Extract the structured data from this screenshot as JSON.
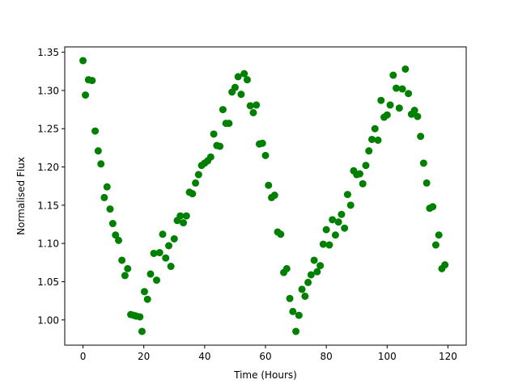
{
  "chart_data": {
    "type": "scatter",
    "title": "",
    "xlabel": "Time (Hours)",
    "ylabel": "Normalised Flux",
    "xlim": [
      -6,
      126
    ],
    "ylim": [
      0.967,
      1.357
    ],
    "xticks": [
      0,
      20,
      40,
      60,
      80,
      100,
      120
    ],
    "yticks": [
      1.0,
      1.05,
      1.1,
      1.15,
      1.2,
      1.25,
      1.3,
      1.35
    ],
    "ytick_labels": [
      "1.00",
      "1.05",
      "1.10",
      "1.15",
      "1.20",
      "1.25",
      "1.30",
      "1.35"
    ],
    "grid": false,
    "marker_color": "#008000",
    "series": [
      {
        "points": [
          [
            0.0,
            1.339
          ],
          [
            0.8,
            1.294
          ],
          [
            1.8,
            1.314
          ],
          [
            3.0,
            1.313
          ],
          [
            4.0,
            1.247
          ],
          [
            5.0,
            1.221
          ],
          [
            5.9,
            1.204
          ],
          [
            7.0,
            1.16
          ],
          [
            7.9,
            1.174
          ],
          [
            8.9,
            1.145
          ],
          [
            9.8,
            1.126
          ],
          [
            10.7,
            1.111
          ],
          [
            11.7,
            1.104
          ],
          [
            12.8,
            1.078
          ],
          [
            13.8,
            1.058
          ],
          [
            14.7,
            1.067
          ],
          [
            15.7,
            1.007
          ],
          [
            16.7,
            1.006
          ],
          [
            17.5,
            1.005
          ],
          [
            18.7,
            1.004
          ],
          [
            19.4,
            0.985
          ],
          [
            20.2,
            1.037
          ],
          [
            21.2,
            1.027
          ],
          [
            22.2,
            1.06
          ],
          [
            23.3,
            1.087
          ],
          [
            24.2,
            1.052
          ],
          [
            25.2,
            1.088
          ],
          [
            26.2,
            1.112
          ],
          [
            27.2,
            1.081
          ],
          [
            28.2,
            1.097
          ],
          [
            28.9,
            1.07
          ],
          [
            30.0,
            1.106
          ],
          [
            31.0,
            1.13
          ],
          [
            32.0,
            1.136
          ],
          [
            33.0,
            1.127
          ],
          [
            34.0,
            1.136
          ],
          [
            35.0,
            1.167
          ],
          [
            36.0,
            1.165
          ],
          [
            37.0,
            1.179
          ],
          [
            38.0,
            1.19
          ],
          [
            39.0,
            1.202
          ],
          [
            40.0,
            1.205
          ],
          [
            41.0,
            1.208
          ],
          [
            42.0,
            1.213
          ],
          [
            43.0,
            1.243
          ],
          [
            44.0,
            1.228
          ],
          [
            45.0,
            1.227
          ],
          [
            46.0,
            1.275
          ],
          [
            47.0,
            1.257
          ],
          [
            48.0,
            1.257
          ],
          [
            49.0,
            1.298
          ],
          [
            50.0,
            1.304
          ],
          [
            51.0,
            1.318
          ],
          [
            52.0,
            1.295
          ],
          [
            53.0,
            1.322
          ],
          [
            54.0,
            1.314
          ],
          [
            55.0,
            1.28
          ],
          [
            56.0,
            1.271
          ],
          [
            57.0,
            1.281
          ],
          [
            58.0,
            1.23
          ],
          [
            59.0,
            1.231
          ],
          [
            60.0,
            1.215
          ],
          [
            61.0,
            1.176
          ],
          [
            62.0,
            1.16
          ],
          [
            63.0,
            1.163
          ],
          [
            64.0,
            1.115
          ],
          [
            65.0,
            1.112
          ],
          [
            66.0,
            1.062
          ],
          [
            67.0,
            1.067
          ],
          [
            68.0,
            1.028
          ],
          [
            69.0,
            1.011
          ],
          [
            70.0,
            0.985
          ],
          [
            71.0,
            1.006
          ],
          [
            72.0,
            1.04
          ],
          [
            73.0,
            1.031
          ],
          [
            74.0,
            1.049
          ],
          [
            75.0,
            1.059
          ],
          [
            76.0,
            1.078
          ],
          [
            77.0,
            1.063
          ],
          [
            78.0,
            1.071
          ],
          [
            79.0,
            1.099
          ],
          [
            80.0,
            1.118
          ],
          [
            81.0,
            1.098
          ],
          [
            82.0,
            1.131
          ],
          [
            83.0,
            1.111
          ],
          [
            84.0,
            1.128
          ],
          [
            85.0,
            1.138
          ],
          [
            86.0,
            1.12
          ],
          [
            87.0,
            1.164
          ],
          [
            88.0,
            1.15
          ],
          [
            89.0,
            1.195
          ],
          [
            90.0,
            1.19
          ],
          [
            91.0,
            1.191
          ],
          [
            92.0,
            1.178
          ],
          [
            93.0,
            1.202
          ],
          [
            94.0,
            1.221
          ],
          [
            95.0,
            1.236
          ],
          [
            96.0,
            1.25
          ],
          [
            97.0,
            1.235
          ],
          [
            98.0,
            1.287
          ],
          [
            99.0,
            1.265
          ],
          [
            100.0,
            1.268
          ],
          [
            101.0,
            1.281
          ],
          [
            102.0,
            1.32
          ],
          [
            103.0,
            1.303
          ],
          [
            104.0,
            1.277
          ],
          [
            105.0,
            1.302
          ],
          [
            106.0,
            1.328
          ],
          [
            107.0,
            1.296
          ],
          [
            108.0,
            1.269
          ],
          [
            109.0,
            1.274
          ],
          [
            110.0,
            1.266
          ],
          [
            111.0,
            1.24
          ],
          [
            112.0,
            1.205
          ],
          [
            113.0,
            1.179
          ],
          [
            114.0,
            1.146
          ],
          [
            115.0,
            1.148
          ],
          [
            116.0,
            1.098
          ],
          [
            117.0,
            1.111
          ],
          [
            118.0,
            1.067
          ],
          [
            119.0,
            1.072
          ]
        ]
      }
    ]
  }
}
